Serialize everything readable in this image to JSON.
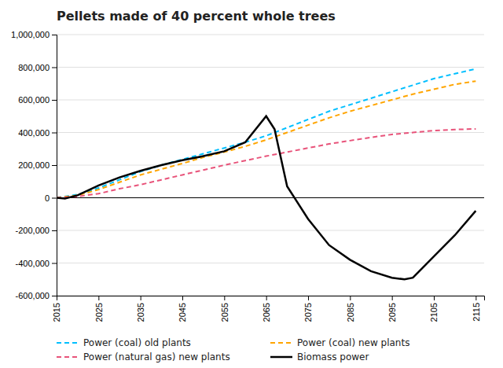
{
  "chart_data": {
    "type": "line",
    "title": "Pellets made of 40 percent whole trees",
    "xlim": [
      2015,
      2117
    ],
    "xticks": [
      2015,
      2025,
      2035,
      2045,
      2055,
      2065,
      2075,
      2085,
      2095,
      2105,
      2115
    ],
    "ylim": [
      -600000,
      1000000
    ],
    "yticks": [
      {
        "value": -600000,
        "label": "-600,000"
      },
      {
        "value": -400000,
        "label": "-400,000"
      },
      {
        "value": -200000,
        "label": "-200,000"
      },
      0,
      {
        "value": 200000,
        "label": "200,000"
      },
      {
        "value": 400000,
        "label": "400,000"
      },
      {
        "value": 600000,
        "label": "600,000"
      },
      {
        "value": 800000,
        "label": "800,000"
      },
      {
        "value": 1000000,
        "label": "1,000,000"
      }
    ],
    "grid": true,
    "legend": "lower left",
    "series": [
      {
        "name": "Power (coal) old plants",
        "color": "#00bfff",
        "line_style": "dashed",
        "x": [
          2015,
          2020,
          2025,
          2030,
          2035,
          2040,
          2045,
          2050,
          2055,
          2060,
          2065,
          2070,
          2075,
          2080,
          2085,
          2090,
          2095,
          2100,
          2105,
          2110,
          2115
        ],
        "values": [
          0,
          20000,
          60000,
          110000,
          160000,
          200000,
          235000,
          270000,
          305000,
          340000,
          380000,
          430000,
          480000,
          530000,
          570000,
          610000,
          650000,
          690000,
          730000,
          760000,
          790000
        ]
      },
      {
        "name": "Power (coal) new plants",
        "color": "#ffa500",
        "line_style": "dashed",
        "x": [
          2015,
          2020,
          2025,
          2030,
          2035,
          2040,
          2045,
          2050,
          2055,
          2060,
          2065,
          2070,
          2075,
          2080,
          2085,
          2090,
          2095,
          2100,
          2105,
          2110,
          2115
        ],
        "values": [
          0,
          15000,
          50000,
          95000,
          140000,
          175000,
          210000,
          248000,
          280000,
          315000,
          355000,
          400000,
          445000,
          490000,
          530000,
          565000,
          600000,
          635000,
          665000,
          695000,
          715000
        ]
      },
      {
        "name": "Power (natural gas) new plants",
        "color": "#e8537a",
        "line_style": "dashed",
        "x": [
          2015,
          2020,
          2025,
          2030,
          2035,
          2040,
          2045,
          2050,
          2055,
          2060,
          2065,
          2070,
          2075,
          2080,
          2085,
          2090,
          2095,
          2100,
          2105,
          2110,
          2115
        ],
        "values": [
          0,
          8000,
          25000,
          55000,
          80000,
          110000,
          140000,
          170000,
          200000,
          228000,
          255000,
          280000,
          305000,
          330000,
          350000,
          370000,
          388000,
          400000,
          412000,
          418000,
          422000
        ]
      },
      {
        "name": "Biomass power",
        "color": "#000000",
        "line_style": "solid",
        "x": [
          2015,
          2017,
          2020,
          2025,
          2030,
          2035,
          2040,
          2045,
          2050,
          2055,
          2060,
          2065,
          2067,
          2070,
          2075,
          2080,
          2085,
          2090,
          2095,
          2098,
          2100,
          2105,
          2110,
          2115
        ],
        "values": [
          0,
          -5000,
          15000,
          75000,
          125000,
          165000,
          200000,
          230000,
          255000,
          285000,
          340000,
          500000,
          420000,
          70000,
          -130000,
          -290000,
          -380000,
          -450000,
          -490000,
          -500000,
          -490000,
          -360000,
          -230000,
          -80000
        ]
      }
    ]
  }
}
